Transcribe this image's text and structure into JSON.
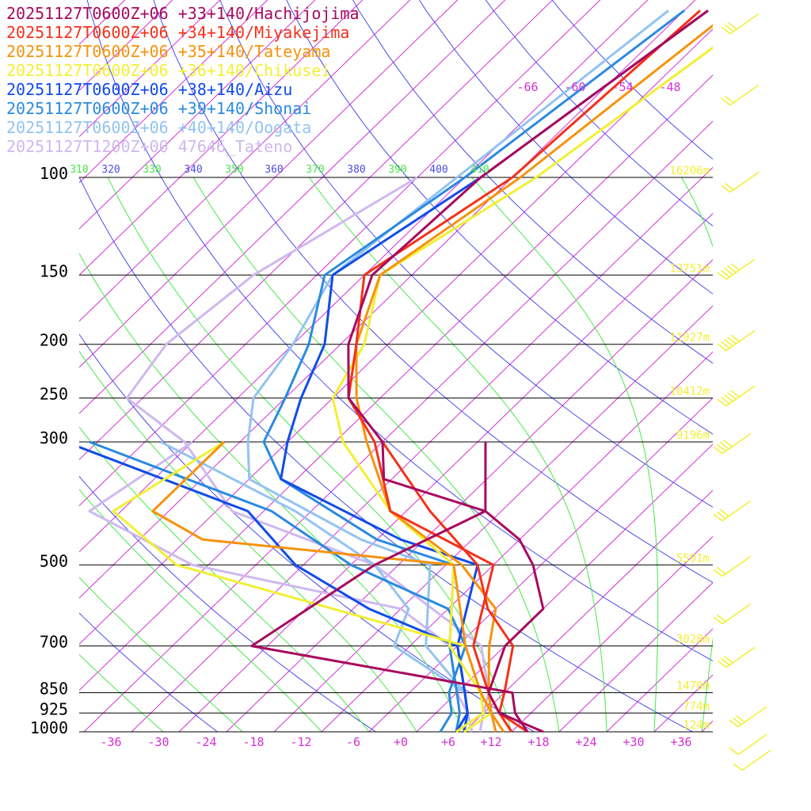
{
  "chart_data": {
    "type": "line",
    "chart_kind": "skew-T log-P",
    "title": "",
    "xlabel": "",
    "ylabel": "",
    "pressure_levels": [
      100,
      150,
      200,
      250,
      300,
      500,
      700,
      850,
      925,
      1000
    ],
    "pressure_labels": [
      "100",
      "150",
      "200",
      "250",
      "300",
      "500",
      "700",
      "850",
      "925",
      "1000"
    ],
    "height_labels": [
      "16206m",
      "13751m",
      "11927m",
      "10412m",
      "9196m",
      "5591m",
      "3028m",
      "1470m",
      "774m",
      "124m"
    ],
    "temp_ticks": [
      "-36",
      "-30",
      "-24",
      "-18",
      "-12",
      "-6",
      "+0",
      "+6",
      "+12",
      "+18",
      "+24",
      "+30",
      "+36"
    ],
    "temp_tick_values": [
      -36,
      -30,
      -24,
      -18,
      -12,
      -6,
      0,
      6,
      12,
      18,
      24,
      30,
      36
    ],
    "upper_temp_labels": [
      "-66",
      "-60",
      "-54",
      "-48"
    ],
    "upper_temp_values": [
      -66,
      -60,
      -54,
      -48
    ],
    "theta_labels": [
      "310",
      "320",
      "330",
      "340",
      "350",
      "360",
      "370",
      "380",
      "390",
      "400",
      "410"
    ],
    "theta_values": [
      310,
      320,
      330,
      340,
      350,
      360,
      370,
      380,
      390,
      400,
      410
    ],
    "series": [
      {
        "name": "20251127T0600Z+06 +33+140/Hachijojima",
        "color": "#a8095e",
        "temp_profile": [
          [
            -55,
            50
          ],
          [
            -62,
            100
          ],
          [
            -63,
            150
          ],
          [
            -57,
            200
          ],
          [
            -50,
            250
          ],
          [
            -40,
            300
          ],
          [
            -35,
            350
          ],
          [
            -18,
            400
          ],
          [
            -10,
            450
          ],
          [
            -5,
            500
          ],
          [
            2,
            600
          ],
          [
            2,
            700
          ],
          [
            6,
            850
          ],
          [
            10,
            925
          ],
          [
            18,
            1000
          ]
        ],
        "dewpoint_profile": [
          [
            -27,
            300
          ],
          [
            -18,
            400
          ],
          [
            -25,
            500
          ],
          [
            -30,
            700
          ],
          [
            9,
            850
          ],
          [
            12,
            925
          ],
          [
            16,
            1000
          ]
        ]
      },
      {
        "name": "20251127T0600Z+06 +34+140/Miyakejima",
        "color": "#f4311a",
        "temp_profile": [
          [
            -56,
            50
          ],
          [
            -58,
            100
          ],
          [
            -64,
            150
          ],
          [
            -56,
            200
          ],
          [
            -50,
            250
          ],
          [
            -41,
            300
          ],
          [
            -30,
            400
          ],
          [
            -10,
            500
          ],
          [
            -2,
            700
          ],
          [
            6,
            850
          ],
          [
            10,
            925
          ],
          [
            16,
            1000
          ]
        ],
        "dewpoint_profile": [
          [
            -40,
            300
          ],
          [
            -25,
            400
          ],
          [
            -12,
            500
          ],
          [
            -5,
            600
          ],
          [
            3,
            700
          ],
          [
            8,
            850
          ],
          [
            10,
            925
          ],
          [
            14,
            1000
          ]
        ]
      },
      {
        "name": "20251127T0600Z+06 +35+140/Tateyama",
        "color": "#f7920c",
        "temp_profile": [
          [
            -52,
            50
          ],
          [
            -57,
            100
          ],
          [
            -62,
            150
          ],
          [
            -56,
            200
          ],
          [
            -49,
            250
          ],
          [
            -42,
            300
          ],
          [
            -30,
            400
          ],
          [
            -14,
            500
          ],
          [
            -4,
            600
          ],
          [
            0,
            700
          ],
          [
            6,
            850
          ],
          [
            9,
            925
          ],
          [
            13,
            1000
          ]
        ],
        "dewpoint_profile": [
          [
            -60,
            300
          ],
          [
            -60,
            400
          ],
          [
            -50,
            450
          ],
          [
            -15,
            500
          ],
          [
            -3,
            700
          ],
          [
            5,
            850
          ],
          [
            9,
            925
          ],
          [
            12,
            1000
          ]
        ]
      },
      {
        "name": "20251127T0600Z+06 +36+140/Chikusei",
        "color": "#f2ef34",
        "temp_profile": [
          [
            -48,
            50
          ],
          [
            -55,
            100
          ],
          [
            -62,
            150
          ],
          [
            -55,
            200
          ],
          [
            -52,
            250
          ],
          [
            -45,
            300
          ],
          [
            -30,
            400
          ],
          [
            -15,
            500
          ],
          [
            -5,
            700
          ],
          [
            5,
            850
          ],
          [
            9,
            925
          ],
          [
            8,
            1000
          ]
        ],
        "dewpoint_profile": [
          [
            -60,
            300
          ],
          [
            -65,
            400
          ],
          [
            -50,
            500
          ],
          [
            -3,
            700
          ],
          [
            5,
            850
          ],
          [
            8,
            925
          ],
          [
            7,
            1000
          ]
        ]
      },
      {
        "name": "20251127T0600Z+06 +38+140/Aizu",
        "color": "#114ce8",
        "temp_profile": [
          [
            -55,
            50
          ],
          [
            -62,
            100
          ],
          [
            -68,
            150
          ],
          [
            -60,
            200
          ],
          [
            -56,
            250
          ],
          [
            -52,
            300
          ],
          [
            -48,
            350
          ],
          [
            -25,
            450
          ],
          [
            -12,
            500
          ],
          [
            -4,
            700
          ],
          [
            3,
            850
          ],
          [
            6,
            925
          ],
          [
            8,
            1000
          ]
        ],
        "dewpoint_profile": [
          [
            -80,
            300
          ],
          [
            -48,
            400
          ],
          [
            -35,
            500
          ],
          [
            -20,
            600
          ],
          [
            -4,
            700
          ],
          [
            3,
            850
          ],
          [
            6,
            925
          ],
          [
            7,
            1000
          ]
        ]
      },
      {
        "name": "20251127T0600Z+06 +39+140/Shonai",
        "color": "#2a8ae0",
        "temp_profile": [
          [
            -58,
            50
          ],
          [
            -64,
            100
          ],
          [
            -69,
            150
          ],
          [
            -62,
            200
          ],
          [
            -58,
            250
          ],
          [
            -55,
            300
          ],
          [
            -48,
            350
          ],
          [
            -28,
            450
          ],
          [
            -15,
            500
          ],
          [
            -5,
            700
          ],
          [
            2,
            850
          ],
          [
            5,
            925
          ],
          [
            7,
            1000
          ]
        ],
        "dewpoint_profile": [
          [
            -77,
            300
          ],
          [
            -45,
            400
          ],
          [
            -28,
            500
          ],
          [
            -10,
            600
          ],
          [
            -3,
            700
          ],
          [
            1,
            850
          ],
          [
            4,
            925
          ],
          [
            5,
            1000
          ]
        ]
      },
      {
        "name": "20251127T0600Z+06 +40+140/Oogata",
        "color": "#93c3f1",
        "temp_profile": [
          [
            -60,
            50
          ],
          [
            -65,
            100
          ],
          [
            -68,
            150
          ],
          [
            -64,
            200
          ],
          [
            -62,
            250
          ],
          [
            -57,
            300
          ],
          [
            -52,
            350
          ],
          [
            -30,
            450
          ],
          [
            -18,
            500
          ],
          [
            -8,
            700
          ],
          [
            3,
            850
          ],
          [
            6,
            925
          ],
          [
            8,
            1000
          ]
        ],
        "dewpoint_profile": [
          [
            -68,
            300
          ],
          [
            -42,
            400
          ],
          [
            -25,
            500
          ],
          [
            -15,
            600
          ],
          [
            -12,
            700
          ],
          [
            3,
            850
          ],
          [
            6,
            925
          ],
          [
            8,
            1000
          ]
        ]
      },
      {
        "name": "20251127T1200Z+00 47646_Tateno",
        "color": "#cfb8ef",
        "temp_profile": [
          [
            -70,
            100
          ],
          [
            -78,
            150
          ],
          [
            -80,
            200
          ],
          [
            -78,
            250
          ],
          [
            -65,
            300
          ],
          [
            -50,
            400
          ],
          [
            -25,
            500
          ],
          [
            -12,
            600
          ],
          [
            -1,
            700
          ],
          [
            6,
            850
          ],
          [
            8,
            925
          ],
          [
            10,
            1000
          ]
        ],
        "dewpoint_profile": [
          [
            -64,
            300
          ],
          [
            -68,
            400
          ],
          [
            -48,
            500
          ],
          [
            -16,
            600
          ],
          [
            -5,
            700
          ],
          [
            2,
            850
          ],
          [
            6,
            925
          ],
          [
            9,
            1000
          ]
        ]
      }
    ],
    "legend_position": "top-left",
    "colors": {
      "isotherm": "#d52fd5",
      "dry_adiabat": "#4c4ce8",
      "moist_adiabat": "#47e847",
      "isobar": "#000000",
      "wind_barb": "#f2ef34"
    },
    "wind_barbs_speed_kt": [
      25,
      15,
      15,
      50,
      50,
      45,
      35,
      30,
      20,
      15,
      25,
      30,
      10,
      5
    ]
  }
}
